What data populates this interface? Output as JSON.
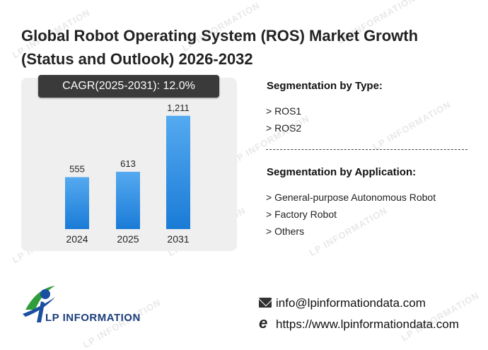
{
  "title_line1": "Global Robot Operating System (ROS) Market Growth",
  "title_line2": "(Status and Outlook) 2026-2032",
  "cagr_label": "CAGR(2025-2031):  12.0%",
  "chart_data": {
    "type": "bar",
    "categories": [
      "2024",
      "2025",
      "2031"
    ],
    "values": [
      555,
      613,
      1211
    ],
    "value_labels": [
      "555",
      "613",
      "1,211"
    ],
    "ylim": [
      0,
      1300
    ],
    "bar_color_top": "#55aaf0",
    "bar_color_bottom": "#1a7bd6",
    "grid": false
  },
  "segmentation_type": {
    "heading": "Segmentation by Type:",
    "items": [
      "> ROS1",
      "> ROS2"
    ]
  },
  "segmentation_application": {
    "heading": "Segmentation by Application:",
    "items": [
      "> General-purpose Autonomous Robot",
      "> Factory Robot",
      "> Others"
    ]
  },
  "contact": {
    "email": "info@lpinformationdata.com",
    "website": "https://www.lpinformationdata.com"
  },
  "logo": {
    "text": "LP INFORMATION"
  },
  "watermark_text": "LP INFORMATION",
  "icons": {
    "email": "mail-icon",
    "web": "web-icon"
  }
}
